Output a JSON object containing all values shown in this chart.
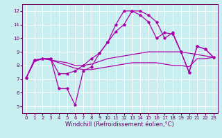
{
  "title": "",
  "xlabel": "Windchill (Refroidissement éolien,°C)",
  "bg_color": "#c8eef0",
  "grid_color": "#ffffff",
  "line_color": "#aa00aa",
  "xlim": [
    -0.5,
    23.5
  ],
  "ylim": [
    4.5,
    12.5
  ],
  "xticks": [
    0,
    1,
    2,
    3,
    4,
    5,
    6,
    7,
    8,
    9,
    10,
    11,
    12,
    13,
    14,
    15,
    16,
    17,
    18,
    19,
    20,
    21,
    22,
    23
  ],
  "yticks": [
    5,
    6,
    7,
    8,
    9,
    10,
    11,
    12
  ],
  "line1_x": [
    0,
    1,
    2,
    3,
    4,
    5,
    6,
    7,
    8,
    9,
    10,
    11,
    12,
    13,
    14,
    15,
    16,
    17,
    18,
    19,
    20,
    21,
    22,
    23
  ],
  "line1_y": [
    7.1,
    8.4,
    8.5,
    8.5,
    7.4,
    7.4,
    7.6,
    8.0,
    8.5,
    8.9,
    9.7,
    10.5,
    11.0,
    12.0,
    12.0,
    11.7,
    11.2,
    10.0,
    10.4,
    9.0,
    7.5,
    9.4,
    9.2,
    8.6
  ],
  "line2_x": [
    0,
    1,
    2,
    3,
    4,
    5,
    6,
    7,
    8,
    9,
    10,
    11,
    12,
    13,
    14,
    15,
    16,
    17,
    18,
    19,
    20,
    21,
    22,
    23
  ],
  "line2_y": [
    7.1,
    8.4,
    8.5,
    8.5,
    6.3,
    6.3,
    5.1,
    7.6,
    7.9,
    8.9,
    9.7,
    11.0,
    12.0,
    12.0,
    11.7,
    11.2,
    10.0,
    10.4,
    10.3,
    9.0,
    7.5,
    9.4,
    9.2,
    8.6
  ],
  "line3_x": [
    0,
    1,
    2,
    3,
    4,
    5,
    6,
    7,
    8,
    9,
    10,
    11,
    12,
    13,
    14,
    15,
    16,
    17,
    18,
    19,
    20,
    21,
    22,
    23
  ],
  "line3_y": [
    7.1,
    8.3,
    8.5,
    8.4,
    8.3,
    8.2,
    8.0,
    8.0,
    8.1,
    8.3,
    8.5,
    8.6,
    8.7,
    8.8,
    8.9,
    9.0,
    9.0,
    9.0,
    9.0,
    9.0,
    8.9,
    8.8,
    8.7,
    8.6
  ],
  "line4_x": [
    0,
    1,
    2,
    3,
    4,
    5,
    6,
    7,
    8,
    9,
    10,
    11,
    12,
    13,
    14,
    15,
    16,
    17,
    18,
    19,
    20,
    21,
    22,
    23
  ],
  "line4_y": [
    7.1,
    8.3,
    8.5,
    8.4,
    8.2,
    8.0,
    7.8,
    7.7,
    7.7,
    7.8,
    7.9,
    8.0,
    8.1,
    8.2,
    8.2,
    8.2,
    8.2,
    8.1,
    8.0,
    8.0,
    7.9,
    8.5,
    8.5,
    8.6
  ],
  "tick_fontsize": 5.0,
  "xlabel_fontsize": 6.0,
  "tick_color": "#660066",
  "spine_color": "#660066"
}
